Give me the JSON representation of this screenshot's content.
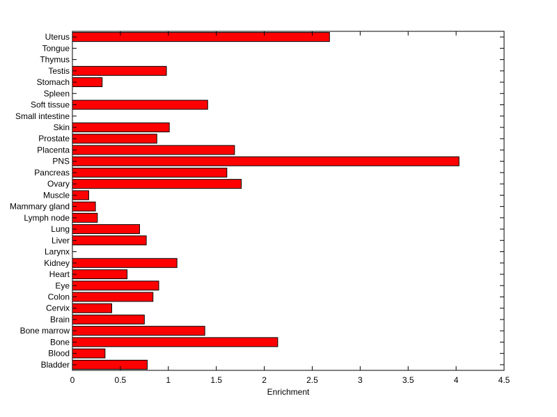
{
  "chart_data": {
    "type": "bar",
    "orientation": "horizontal",
    "title": "",
    "xlabel": "Enrichment",
    "ylabel": "",
    "xlim": [
      0,
      4.5
    ],
    "xticks": [
      0,
      0.5,
      1,
      1.5,
      2,
      2.5,
      3,
      3.5,
      4,
      4.5
    ],
    "xtick_labels": [
      "0",
      "0.5",
      "1",
      "1.5",
      "2",
      "2.5",
      "3",
      "3.5",
      "4",
      "4.5"
    ],
    "grid": false,
    "legend": "none",
    "bar_color": "#ff0000",
    "categories": [
      "Uterus",
      "Tongue",
      "Thymus",
      "Testis",
      "Stomach",
      "Spleen",
      "Soft tissue",
      "Small intestine",
      "Skin",
      "Prostate",
      "Placenta",
      "PNS",
      "Pancreas",
      "Ovary",
      "Muscle",
      "Mammary gland",
      "Lymph node",
      "Lung",
      "Liver",
      "Larynx",
      "Kidney",
      "Heart",
      "Eye",
      "Colon",
      "Cervix",
      "Brain",
      "Bone marrow",
      "Bone",
      "Blood",
      "Bladder"
    ],
    "values": [
      2.68,
      0,
      0,
      0.98,
      0.31,
      0,
      1.41,
      0,
      1.01,
      0.88,
      1.69,
      4.03,
      1.61,
      1.76,
      0.17,
      0.24,
      0.26,
      0.7,
      0.77,
      0,
      1.09,
      0.57,
      0.9,
      0.84,
      0.41,
      0.75,
      1.38,
      2.14,
      0.34,
      0.78
    ]
  }
}
